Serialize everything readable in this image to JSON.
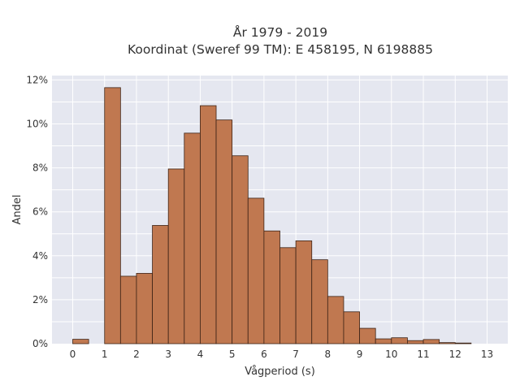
{
  "chart_data": {
    "type": "bar",
    "title_line1": "År 1979 - 2019",
    "title_line2": "Koordinat (Sweref 99 TM): E 458195, N 6198885",
    "xlabel": "Vågperiod (s)",
    "ylabel": "Andel",
    "xlim": [
      -0.65,
      13.65
    ],
    "ylim": [
      0,
      0.122
    ],
    "bin_width": 0.5,
    "x_ticks": [
      0,
      1,
      2,
      3,
      4,
      5,
      6,
      7,
      8,
      9,
      10,
      11,
      12,
      13
    ],
    "y_ticks": [
      0,
      0.02,
      0.04,
      0.06,
      0.08,
      0.1,
      0.12
    ],
    "y_tick_labels": [
      "0%",
      "2%",
      "4%",
      "6%",
      "8%",
      "10%",
      "12%"
    ],
    "bins": [
      0,
      0.5,
      1,
      1.5,
      2,
      2.5,
      3,
      3.5,
      4,
      4.5,
      5,
      5.5,
      6,
      6.5,
      7,
      7.5,
      8,
      8.5,
      9,
      9.5,
      10,
      10.5,
      11,
      11.5,
      12
    ],
    "values": [
      0.002,
      0.0,
      0.1165,
      0.0307,
      0.032,
      0.0538,
      0.0795,
      0.0958,
      0.1083,
      0.1018,
      0.0855,
      0.0662,
      0.0513,
      0.0437,
      0.0468,
      0.0382,
      0.0215,
      0.0145,
      0.007,
      0.0022,
      0.0027,
      0.0014,
      0.0019,
      0.0005,
      0.0003
    ],
    "bar_color": "#c07850",
    "bar_edge_color": "#3d2316",
    "plot_background": "#e5e7f0",
    "grid": true,
    "grid_color": "#ffffff"
  }
}
